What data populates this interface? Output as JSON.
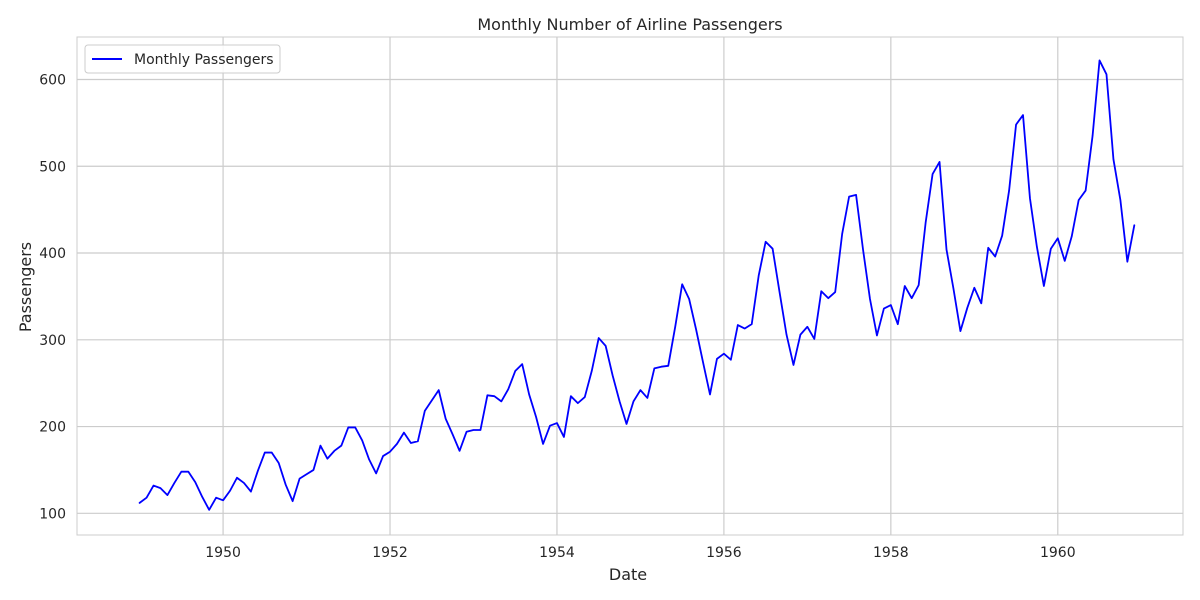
{
  "chart_data": {
    "type": "line",
    "title": "Monthly Number of Airline Passengers",
    "xlabel": "Date",
    "ylabel": "Passengers",
    "xlim": [
      "1948-04",
      "1961-07"
    ],
    "ylim": [
      75,
      649
    ],
    "x_ticks": [
      "1950",
      "1952",
      "1954",
      "1956",
      "1958",
      "1960"
    ],
    "y_ticks": [
      100,
      200,
      300,
      400,
      500,
      600
    ],
    "grid": true,
    "legend": "top-left",
    "series": [
      {
        "name": "Monthly Passengers",
        "color": "#0000ff",
        "start": "1949-01",
        "frequency": "monthly",
        "values": [
          112,
          118,
          132,
          129,
          121,
          135,
          148,
          148,
          136,
          119,
          104,
          118,
          115,
          126,
          141,
          135,
          125,
          149,
          170,
          170,
          158,
          133,
          114,
          140,
          145,
          150,
          178,
          163,
          172,
          178,
          199,
          199,
          184,
          162,
          146,
          166,
          171,
          180,
          193,
          181,
          183,
          218,
          230,
          242,
          209,
          191,
          172,
          194,
          196,
          196,
          236,
          235,
          229,
          243,
          264,
          272,
          237,
          211,
          180,
          201,
          204,
          188,
          235,
          227,
          234,
          264,
          302,
          293,
          259,
          229,
          203,
          229,
          242,
          233,
          267,
          269,
          270,
          315,
          364,
          347,
          312,
          274,
          237,
          278,
          284,
          277,
          317,
          313,
          318,
          374,
          413,
          405,
          355,
          306,
          271,
          306,
          315,
          301,
          356,
          348,
          355,
          422,
          465,
          467,
          404,
          347,
          305,
          336,
          340,
          318,
          362,
          348,
          363,
          435,
          491,
          505,
          404,
          359,
          310,
          337,
          360,
          342,
          406,
          396,
          420,
          472,
          548,
          559,
          463,
          407,
          362,
          405,
          417,
          391,
          419,
          461,
          472,
          535,
          622,
          606,
          508,
          461,
          390,
          432
        ]
      }
    ]
  }
}
